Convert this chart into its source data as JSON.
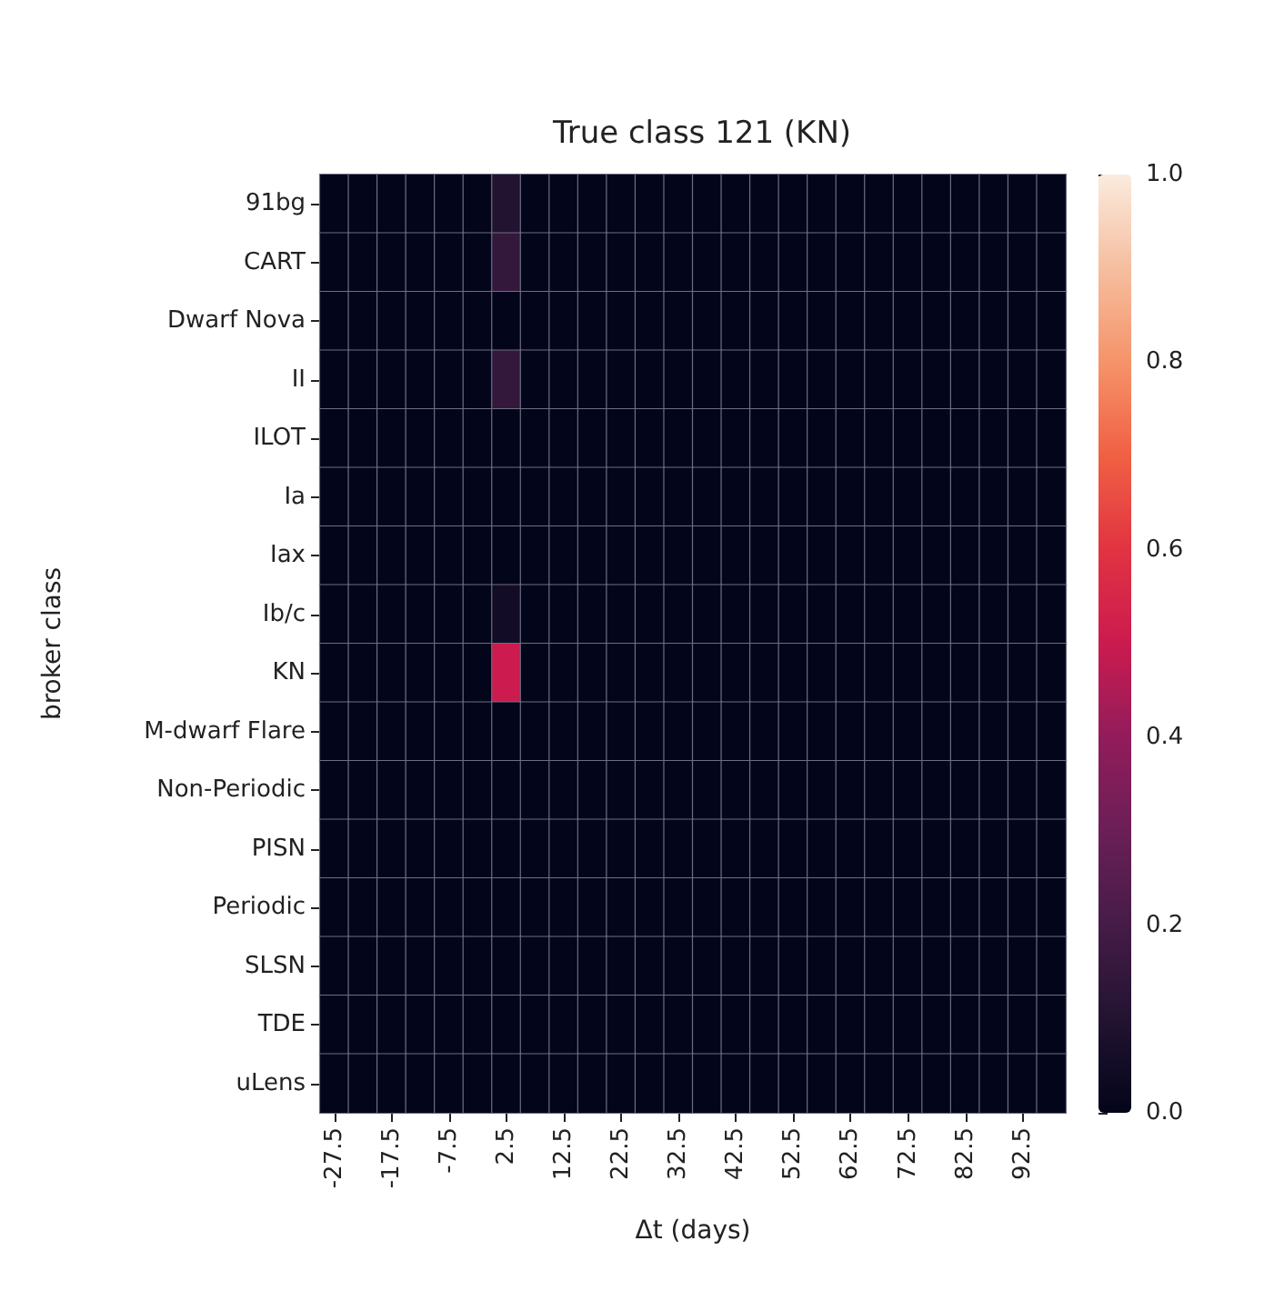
{
  "chart_data": {
    "type": "heatmap",
    "title": "True class 121 (KN)",
    "xlabel": "Δt (days)",
    "ylabel": "broker class",
    "categories": [
      "-27.5",
      null,
      "-17.5",
      null,
      "-7.5",
      null,
      "2.5",
      null,
      "12.5",
      null,
      "22.5",
      null,
      "32.5",
      null,
      "42.5",
      null,
      "52.5",
      null,
      "62.5",
      null,
      "72.5",
      null,
      "82.5",
      null,
      "92.5",
      null
    ],
    "y_categories": [
      "91bg",
      "CART",
      "Dwarf Nova",
      "II",
      "ILOT",
      "Ia",
      "Iax",
      "Ib/c",
      "KN",
      "M-dwarf Flare",
      "Non-Periodic",
      "PISN",
      "Periodic",
      "SLSN",
      "TDE",
      "uLens"
    ],
    "cells": [
      [
        0,
        0,
        0,
        0,
        0,
        0,
        0.1,
        0,
        0,
        0,
        0,
        0,
        0,
        0,
        0,
        0,
        0,
        0,
        0,
        0,
        0,
        0,
        0,
        0,
        0,
        0
      ],
      [
        0,
        0,
        0,
        0,
        0,
        0,
        0.15,
        0,
        0,
        0,
        0,
        0,
        0,
        0,
        0,
        0,
        0,
        0,
        0,
        0,
        0,
        0,
        0,
        0,
        0,
        0
      ],
      [
        0,
        0,
        0,
        0,
        0,
        0,
        0,
        0,
        0,
        0,
        0,
        0,
        0,
        0,
        0,
        0,
        0,
        0,
        0,
        0,
        0,
        0,
        0,
        0,
        0,
        0
      ],
      [
        0,
        0,
        0,
        0,
        0,
        0,
        0.15,
        0,
        0,
        0,
        0,
        0,
        0,
        0,
        0,
        0,
        0,
        0,
        0,
        0,
        0,
        0,
        0,
        0,
        0,
        0
      ],
      [
        0,
        0,
        0,
        0,
        0,
        0,
        0,
        0,
        0,
        0,
        0,
        0,
        0,
        0,
        0,
        0,
        0,
        0,
        0,
        0,
        0,
        0,
        0,
        0,
        0,
        0
      ],
      [
        0,
        0,
        0,
        0,
        0,
        0,
        0,
        0,
        0,
        0,
        0,
        0,
        0,
        0,
        0,
        0,
        0,
        0,
        0,
        0,
        0,
        0,
        0,
        0,
        0,
        0
      ],
      [
        0,
        0,
        0,
        0,
        0,
        0,
        0,
        0,
        0,
        0,
        0,
        0,
        0,
        0,
        0,
        0,
        0,
        0,
        0,
        0,
        0,
        0,
        0,
        0,
        0,
        0
      ],
      [
        0,
        0,
        0,
        0,
        0,
        0,
        0.05,
        0,
        0,
        0,
        0,
        0,
        0,
        0,
        0,
        0,
        0,
        0,
        0,
        0,
        0,
        0,
        0,
        0,
        0,
        0
      ],
      [
        0,
        0,
        0,
        0,
        0,
        0,
        0.5,
        0,
        0,
        0,
        0,
        0,
        0,
        0,
        0,
        0,
        0,
        0,
        0,
        0,
        0,
        0,
        0,
        0,
        0,
        0
      ],
      [
        0,
        0,
        0,
        0,
        0,
        0,
        0,
        0,
        0,
        0,
        0,
        0,
        0,
        0,
        0,
        0,
        0,
        0,
        0,
        0,
        0,
        0,
        0,
        0,
        0,
        0
      ],
      [
        0,
        0,
        0,
        0,
        0,
        0,
        0,
        0,
        0,
        0,
        0,
        0,
        0,
        0,
        0,
        0,
        0,
        0,
        0,
        0,
        0,
        0,
        0,
        0,
        0,
        0
      ],
      [
        0,
        0,
        0,
        0,
        0,
        0,
        0,
        0,
        0,
        0,
        0,
        0,
        0,
        0,
        0,
        0,
        0,
        0,
        0,
        0,
        0,
        0,
        0,
        0,
        0,
        0
      ],
      [
        0,
        0,
        0,
        0,
        0,
        0,
        0,
        0,
        0,
        0,
        0,
        0,
        0,
        0,
        0,
        0,
        0,
        0,
        0,
        0,
        0,
        0,
        0,
        0,
        0,
        0
      ],
      [
        0,
        0,
        0,
        0,
        0,
        0,
        0,
        0,
        0,
        0,
        0,
        0,
        0,
        0,
        0,
        0,
        0,
        0,
        0,
        0,
        0,
        0,
        0,
        0,
        0,
        0
      ],
      [
        0,
        0,
        0,
        0,
        0,
        0,
        0,
        0,
        0,
        0,
        0,
        0,
        0,
        0,
        0,
        0,
        0,
        0,
        0,
        0,
        0,
        0,
        0,
        0,
        0,
        0
      ],
      [
        0,
        0,
        0,
        0,
        0,
        0,
        0,
        0,
        0,
        0,
        0,
        0,
        0,
        0,
        0,
        0,
        0,
        0,
        0,
        0,
        0,
        0,
        0,
        0,
        0,
        0
      ]
    ],
    "clim": [
      0,
      1
    ],
    "cticks": [
      {
        "value": 0,
        "label": "0.0"
      },
      0.2,
      0.4,
      0.6,
      0.8,
      {
        "value": 1,
        "label": "1.0"
      }
    ]
  }
}
